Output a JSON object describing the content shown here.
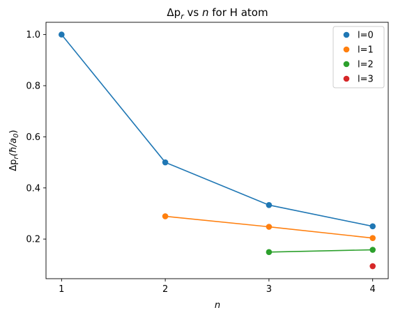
{
  "chart_data": {
    "type": "scatter",
    "title": {
      "pre": "Δp",
      "sub": "r",
      "mid": " vs ",
      "n": "n",
      "post": " for H atom"
    },
    "xlabel": "n",
    "ylabel": {
      "pre": "Δp",
      "sub": "r",
      "post": "(ħ/a",
      "sub2": "0",
      "end": ")"
    },
    "xlim": [
      0.85,
      4.15
    ],
    "ylim": [
      0.045,
      1.048
    ],
    "xticks": [
      1,
      2,
      3,
      4
    ],
    "yticks": [
      0.2,
      0.4,
      0.6,
      0.8,
      1.0
    ],
    "ytick_labels": [
      "0.2",
      "0.4",
      "0.6",
      "0.8",
      "1.0"
    ],
    "xtick_labels": [
      "1",
      "2",
      "3",
      "4"
    ],
    "grid": false,
    "legend_position": "top-right",
    "series": [
      {
        "name": "l=0",
        "color": "#1f77b4",
        "x": [
          1,
          2,
          3,
          4
        ],
        "values": [
          1.0,
          0.5,
          0.333,
          0.25
        ]
      },
      {
        "name": "l=1",
        "color": "#ff7f0e",
        "x": [
          2,
          3,
          4
        ],
        "values": [
          0.289,
          0.248,
          0.204
        ]
      },
      {
        "name": "l=2",
        "color": "#2ca02c",
        "x": [
          3,
          4
        ],
        "values": [
          0.149,
          0.158
        ]
      },
      {
        "name": "l=3",
        "color": "#d62728",
        "x": [
          4
        ],
        "values": [
          0.094
        ]
      }
    ]
  }
}
